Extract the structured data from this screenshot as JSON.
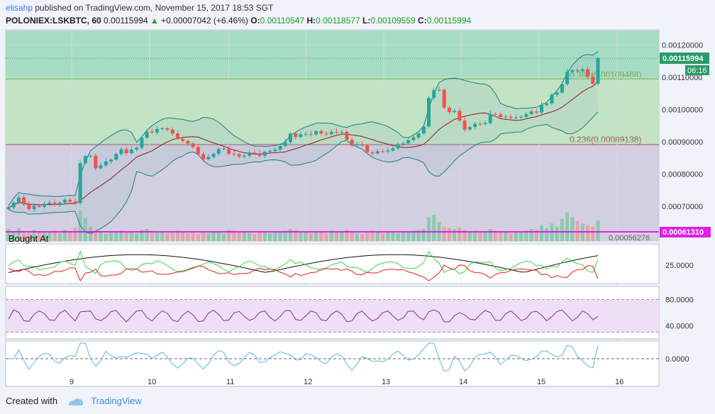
{
  "header": {
    "author": "elisahp",
    "published_text": "published on TradingView.com, November 15, 2017 18:53 SGT",
    "symbol": "POLONIEX:LSKBTC, 60",
    "last": "0.00115994",
    "change": "+0.00007042 (+6.46%)",
    "open_label": "O:",
    "open": "0.00110547",
    "high_label": "H:",
    "high": "0.00118577",
    "low_label": "L:",
    "low": "0.00109559",
    "close_label": "C:",
    "close": "0.00115994"
  },
  "footer": {
    "created_with": "Created with",
    "brand": "TradingView"
  },
  "colors": {
    "up": "#26a69a",
    "down": "#ef5350",
    "bollinger": "#1a7f7f",
    "basis": "#8b1a1a",
    "fib_zone_top": "#a7dcc4",
    "fib_zone_mid": "#c2e3c4",
    "fib_zone_low": "#d2cfe0",
    "bought_line": "#e020e0",
    "rsi": "#8a2b8f",
    "rsi_band": "#eedff7",
    "osc": "#5bb5e0"
  },
  "chart_data": {
    "type": "candlestick",
    "symbol": "POLONIEX:LSKBTC",
    "interval": "60",
    "x_ticks": [
      "9",
      "10",
      "11",
      "12",
      "13",
      "14",
      "15",
      "16"
    ],
    "y_ticks": [
      "0.00120000",
      "0.00110000",
      "0.00100000",
      "0.00090000",
      "0.00080000",
      "0.00070000"
    ],
    "ylim": [
      0.000593,
      0.001247
    ],
    "last_price_label": "0.00115994",
    "countdown_label": "06:16",
    "bought_at_label": "Bought At",
    "bought_at_value": "0.00061310",
    "bottom_partial_label": "0.00056276",
    "fib_levels": [
      {
        "label": "0.382(0.00109468)",
        "value": 0.00109468
      },
      {
        "label": "0.236(0.00089138)",
        "value": 0.00089138
      }
    ],
    "close_series": [
      0.000697,
      0.000712,
      0.000728,
      0.000706,
      0.000692,
      0.000702,
      0.000699,
      0.000708,
      0.000712,
      0.000704,
      0.000712,
      0.000721,
      0.000715,
      0.000711,
      0.000834,
      0.000856,
      0.000857,
      0.000818,
      0.000827,
      0.000839,
      0.000845,
      0.000862,
      0.000877,
      0.000865,
      0.000876,
      0.000882,
      0.000913,
      0.000932,
      0.000929,
      0.00094,
      0.000942,
      0.000938,
      0.000926,
      0.000909,
      0.000903,
      0.000895,
      0.000884,
      0.000862,
      0.000846,
      0.000853,
      0.000863,
      0.000878,
      0.000879,
      0.000863,
      0.000862,
      0.000854,
      0.000857,
      0.000867,
      0.000864,
      0.000857,
      0.000869,
      0.000872,
      0.000876,
      0.000887,
      0.000899,
      0.000926,
      0.000915,
      0.000923,
      0.000924,
      0.000923,
      0.000933,
      0.000926,
      0.000924,
      0.000931,
      0.000929,
      0.000931,
      0.000906,
      0.000889,
      0.000892,
      0.000889,
      0.000868,
      0.000864,
      0.000871,
      0.00087,
      0.000873,
      0.00088,
      0.000893,
      0.000895,
      0.000905,
      0.000914,
      0.000926,
      0.000948,
      0.001036,
      0.001061,
      0.001061,
      0.001006,
      0.000992,
      0.000996,
      0.000966,
      0.000938,
      0.000946,
      0.000956,
      0.000955,
      0.000958,
      0.000987,
      0.000985,
      0.000977,
      0.000978,
      0.000975,
      0.000975,
      0.000978,
      0.000986,
      0.000994,
      0.000991,
      0.001014,
      0.001019,
      0.001046,
      0.001053,
      0.001079,
      0.001117,
      0.001122,
      0.001119,
      0.001125,
      0.001101,
      0.00108,
      0.001159
    ],
    "volume_series": [
      15,
      12,
      16,
      13,
      10,
      14,
      12,
      11,
      12,
      13,
      10,
      14,
      12,
      16,
      38,
      29,
      18,
      14,
      12,
      9,
      11,
      12,
      13,
      11,
      12,
      10,
      14,
      15,
      13,
      12,
      11,
      10,
      12,
      13,
      11,
      10,
      12,
      9,
      11,
      10,
      12,
      11,
      10,
      14,
      13,
      12,
      11,
      10,
      9,
      11,
      12,
      10,
      11,
      12,
      13,
      15,
      14,
      12,
      11,
      10,
      12,
      11,
      10,
      13,
      12,
      11,
      14,
      12,
      10,
      9,
      11,
      13,
      12,
      10,
      11,
      12,
      10,
      11,
      12,
      13,
      14,
      15,
      30,
      33,
      24,
      18,
      16,
      15,
      17,
      14,
      12,
      13,
      11,
      12,
      15,
      13,
      12,
      11,
      10,
      12,
      11,
      13,
      15,
      14,
      20,
      16,
      22,
      18,
      28,
      36,
      30,
      25,
      22,
      20,
      18,
      26
    ],
    "indicator_labels": {
      "dmi_tick": "25.0000",
      "rsi_ticks": [
        "80.0000",
        "40.0000"
      ],
      "osc_tick": "0.0000"
    }
  }
}
